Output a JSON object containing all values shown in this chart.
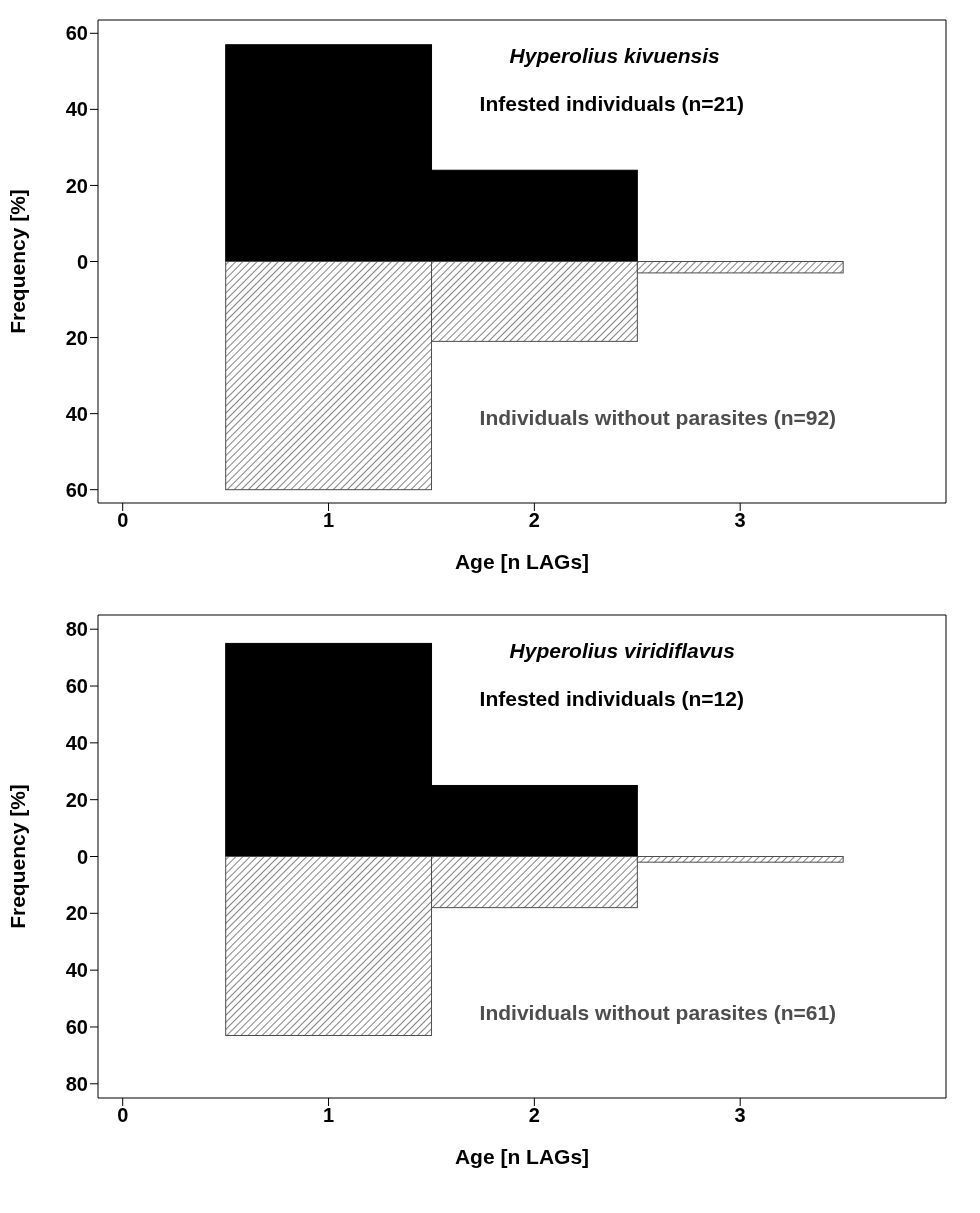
{
  "chart_data": [
    {
      "type": "bar",
      "title": "Hyperolius kivuensis",
      "xlabel": "Age [n LAGs]",
      "ylabel": "Frequency [%]",
      "x": [
        1,
        2,
        3
      ],
      "series": [
        {
          "name": "Infested individuals (n=21)",
          "color": "#000000",
          "values": [
            57,
            24,
            0
          ]
        },
        {
          "name": "Individuals without parasites (n=92)",
          "color": "#4d4d4d",
          "values": [
            -60,
            -21,
            -3
          ]
        }
      ],
      "xlim": [
        -0.12,
        4
      ],
      "xticks": [
        0,
        1,
        2,
        3
      ],
      "ylim": [
        -63.5,
        63.5
      ],
      "yticks": [
        {
          "value": -60,
          "label": "60"
        },
        {
          "value": -40,
          "label": "40"
        },
        {
          "value": -20,
          "label": "20"
        },
        0,
        20,
        40,
        60
      ],
      "stacked": true,
      "grid": false,
      "legend": false
    },
    {
      "type": "bar",
      "title": "Hyperolius viridiflavus",
      "xlabel": "Age [n LAGs]",
      "ylabel": "Frequency [%]",
      "x": [
        1,
        2,
        3
      ],
      "series": [
        {
          "name": "Infested individuals (n=12)",
          "color": "#000000",
          "values": [
            75,
            25,
            0
          ]
        },
        {
          "name": "Individuals without parasites (n=61)",
          "color": "#4d4d4d",
          "values": [
            -63,
            -18,
            -2
          ]
        }
      ],
      "xlim": [
        -0.12,
        4
      ],
      "xticks": [
        0,
        1,
        2,
        3
      ],
      "ylim": [
        -85,
        85
      ],
      "yticks": [
        {
          "value": -80,
          "label": "80"
        },
        {
          "value": -60,
          "label": "60"
        },
        {
          "value": -40,
          "label": "40"
        },
        {
          "value": -20,
          "label": "20"
        },
        0,
        20,
        40,
        60,
        80
      ],
      "stacked": true,
      "grid": false,
      "legend": false
    }
  ]
}
